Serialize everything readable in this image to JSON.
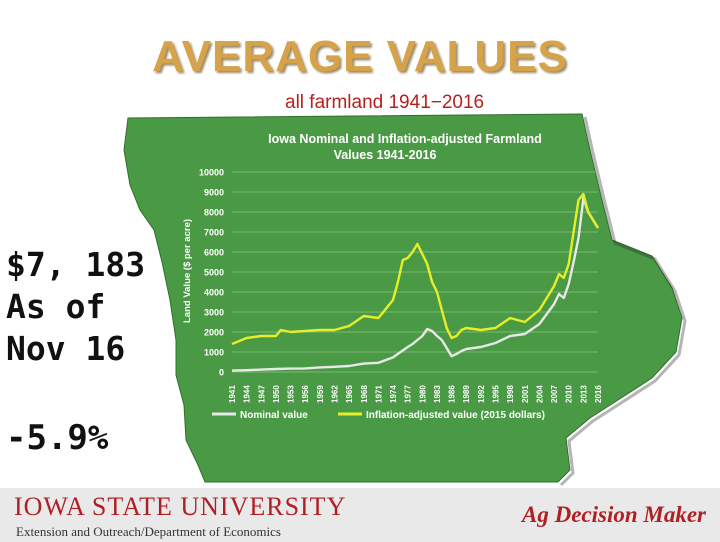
{
  "title": "AVERAGE VALUES",
  "subtitle": "all farmland 1941−2016",
  "stat_lines": [
    "$7, 183",
    "As of",
    "Nov 16"
  ],
  "change": "-5.9%",
  "footer": {
    "university": "IOWA STATE UNIVERSITY",
    "unit": "Extension and Outreach/Department of Economics",
    "brand": "Ag Decision Maker"
  },
  "colors": {
    "map_green": "#4a9a45",
    "nominal": "#e8e8e8",
    "inflation": "#e6ee2a",
    "title_gold": "#d6a24a",
    "brand_red": "#b01f24"
  },
  "chart_data": {
    "type": "line",
    "title": "Iowa Nominal and Inflation-adjusted Farmland Values 1941-2016",
    "title_lines": [
      "Iowa Nominal and Inflation-adjusted Farmland",
      "Values 1941-2016"
    ],
    "ylabel": "Land Value ($ per acre)",
    "xlabel": "",
    "ylim": [
      0,
      10000
    ],
    "yticks": [
      0,
      1000,
      2000,
      3000,
      4000,
      5000,
      6000,
      7000,
      8000,
      9000,
      10000
    ],
    "xlim": [
      1941,
      2016
    ],
    "xticks": [
      "1941",
      "1944",
      "1947",
      "1950",
      "1953",
      "1956",
      "1959",
      "1962",
      "1965",
      "1968",
      "1971",
      "1974",
      "1977",
      "1980",
      "1983",
      "1986",
      "1989",
      "1992",
      "1995",
      "1998",
      "2001",
      "2004",
      "2007",
      "2010",
      "2013",
      "2016"
    ],
    "legend": "bottom",
    "grid": true,
    "series": [
      {
        "name": "Nominal value",
        "x": [
          1941,
          1944,
          1947,
          1950,
          1953,
          1956,
          1959,
          1962,
          1965,
          1968,
          1971,
          1974,
          1977,
          1978,
          1979,
          1980,
          1981,
          1982,
          1983,
          1984,
          1985,
          1986,
          1987,
          1988,
          1989,
          1992,
          1995,
          1998,
          2001,
          2004,
          2007,
          2008,
          2009,
          2010,
          2011,
          2012,
          2013,
          2014,
          2015,
          2016
        ],
        "y": [
          70,
          90,
          120,
          150,
          170,
          180,
          230,
          260,
          300,
          420,
          460,
          730,
          1250,
          1400,
          1600,
          1800,
          2150,
          2050,
          1800,
          1600,
          1200,
          790,
          900,
          1050,
          1150,
          1250,
          1450,
          1800,
          1900,
          2400,
          3400,
          3900,
          3700,
          4400,
          5500,
          6700,
          8700,
          8000,
          7600,
          7200
        ]
      },
      {
        "name": "Inflation-adjusted value (2015 dollars)",
        "x": [
          1941,
          1944,
          1947,
          1950,
          1951,
          1953,
          1956,
          1959,
          1962,
          1965,
          1968,
          1971,
          1974,
          1975,
          1976,
          1977,
          1978,
          1979,
          1980,
          1981,
          1982,
          1983,
          1984,
          1985,
          1986,
          1987,
          1988,
          1989,
          1992,
          1995,
          1998,
          2001,
          2004,
          2007,
          2008,
          2009,
          2010,
          2011,
          2012,
          2013,
          2014,
          2015,
          2016
        ],
        "y": [
          1400,
          1700,
          1800,
          1800,
          2100,
          2000,
          2050,
          2100,
          2100,
          2300,
          2800,
          2700,
          3600,
          4500,
          5600,
          5700,
          6000,
          6400,
          5900,
          5400,
          4500,
          4000,
          3100,
          2200,
          1700,
          1800,
          2100,
          2200,
          2100,
          2200,
          2700,
          2500,
          3100,
          4300,
          4900,
          4700,
          5400,
          7000,
          8600,
          8900,
          8000,
          7600,
          7200
        ]
      }
    ]
  }
}
